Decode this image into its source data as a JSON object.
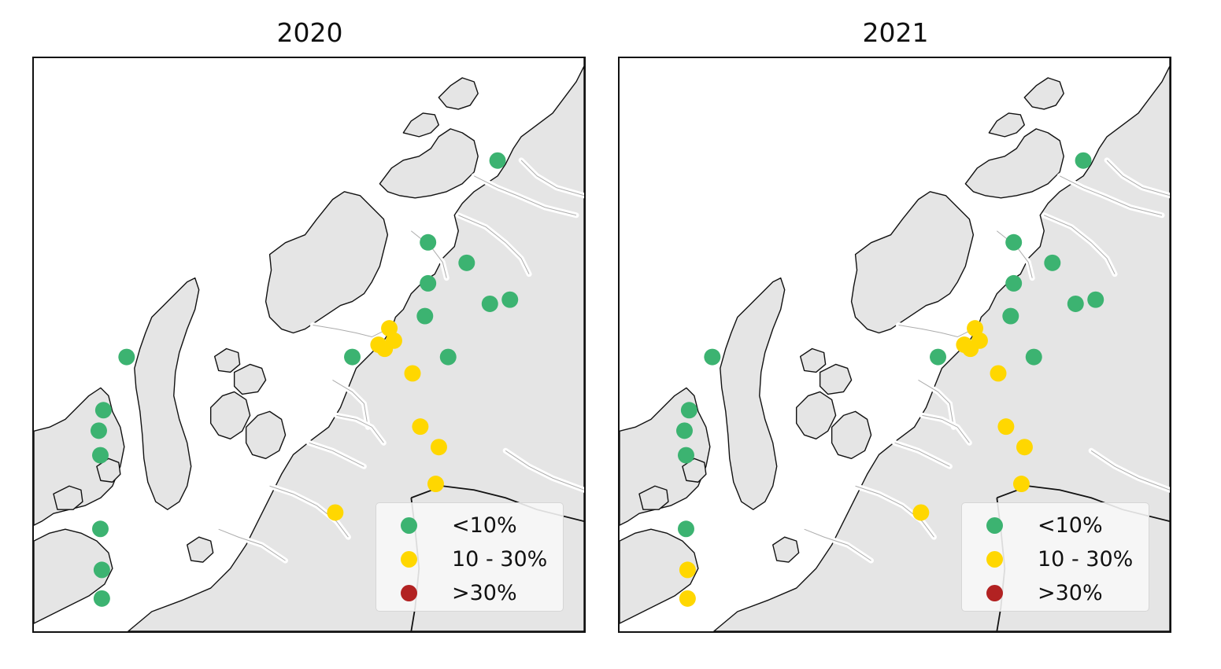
{
  "colors": {
    "low": "#3cb371",
    "medium": "#ffd700",
    "high": "#b22222",
    "land": "#e5e5e5",
    "water": "#ffffff",
    "coast": "#111111"
  },
  "legend": {
    "items": [
      {
        "label": "<10%",
        "category": "low"
      },
      {
        "label": "10 - 30%",
        "category": "medium"
      },
      {
        "label": ">30%",
        "category": "high"
      }
    ]
  },
  "panels": [
    {
      "title": "2020",
      "sites": [
        {
          "lon": 18.0,
          "lat": 70.15,
          "category": "low"
        },
        {
          "lon": 17.55,
          "lat": 69.95,
          "category": "low"
        },
        {
          "lon": 17.8,
          "lat": 69.9,
          "category": "low"
        },
        {
          "lon": 17.55,
          "lat": 69.85,
          "category": "low"
        },
        {
          "lon": 17.95,
          "lat": 69.8,
          "category": "low"
        },
        {
          "lon": 18.08,
          "lat": 69.81,
          "category": "low"
        },
        {
          "lon": 17.53,
          "lat": 69.77,
          "category": "low"
        },
        {
          "lon": 17.06,
          "lat": 69.67,
          "category": "low"
        },
        {
          "lon": 17.68,
          "lat": 69.67,
          "category": "low"
        },
        {
          "lon": 15.6,
          "lat": 69.67,
          "category": "low"
        },
        {
          "lon": 15.45,
          "lat": 69.54,
          "category": "low"
        },
        {
          "lon": 15.42,
          "lat": 69.49,
          "category": "low"
        },
        {
          "lon": 15.43,
          "lat": 69.43,
          "category": "low"
        },
        {
          "lon": 15.43,
          "lat": 69.25,
          "category": "low"
        },
        {
          "lon": 15.44,
          "lat": 69.15,
          "category": "low"
        },
        {
          "lon": 15.44,
          "lat": 69.08,
          "category": "low"
        },
        {
          "lon": 17.3,
          "lat": 69.74,
          "category": "medium"
        },
        {
          "lon": 17.33,
          "lat": 69.71,
          "category": "medium"
        },
        {
          "lon": 17.23,
          "lat": 69.7,
          "category": "medium"
        },
        {
          "lon": 17.27,
          "lat": 69.69,
          "category": "medium"
        },
        {
          "lon": 17.45,
          "lat": 69.63,
          "category": "medium"
        },
        {
          "lon": 17.5,
          "lat": 69.5,
          "category": "medium"
        },
        {
          "lon": 17.62,
          "lat": 69.45,
          "category": "medium"
        },
        {
          "lon": 17.6,
          "lat": 69.36,
          "category": "medium"
        },
        {
          "lon": 16.95,
          "lat": 69.29,
          "category": "medium"
        }
      ]
    },
    {
      "title": "2021",
      "sites": [
        {
          "lon": 18.0,
          "lat": 70.15,
          "category": "low"
        },
        {
          "lon": 17.55,
          "lat": 69.95,
          "category": "low"
        },
        {
          "lon": 17.8,
          "lat": 69.9,
          "category": "low"
        },
        {
          "lon": 17.55,
          "lat": 69.85,
          "category": "low"
        },
        {
          "lon": 17.95,
          "lat": 69.8,
          "category": "low"
        },
        {
          "lon": 18.08,
          "lat": 69.81,
          "category": "low"
        },
        {
          "lon": 17.53,
          "lat": 69.77,
          "category": "low"
        },
        {
          "lon": 17.06,
          "lat": 69.67,
          "category": "low"
        },
        {
          "lon": 17.68,
          "lat": 69.67,
          "category": "low"
        },
        {
          "lon": 15.6,
          "lat": 69.67,
          "category": "low"
        },
        {
          "lon": 15.45,
          "lat": 69.54,
          "category": "low"
        },
        {
          "lon": 15.42,
          "lat": 69.49,
          "category": "low"
        },
        {
          "lon": 15.43,
          "lat": 69.43,
          "category": "low"
        },
        {
          "lon": 15.43,
          "lat": 69.25,
          "category": "low"
        },
        {
          "lon": 15.44,
          "lat": 69.15,
          "category": "medium"
        },
        {
          "lon": 15.44,
          "lat": 69.08,
          "category": "medium"
        },
        {
          "lon": 17.3,
          "lat": 69.74,
          "category": "medium"
        },
        {
          "lon": 17.33,
          "lat": 69.71,
          "category": "medium"
        },
        {
          "lon": 17.23,
          "lat": 69.7,
          "category": "medium"
        },
        {
          "lon": 17.27,
          "lat": 69.69,
          "category": "medium"
        },
        {
          "lon": 17.45,
          "lat": 69.63,
          "category": "medium"
        },
        {
          "lon": 17.5,
          "lat": 69.5,
          "category": "medium"
        },
        {
          "lon": 17.62,
          "lat": 69.45,
          "category": "medium"
        },
        {
          "lon": 17.6,
          "lat": 69.36,
          "category": "medium"
        },
        {
          "lon": 16.95,
          "lat": 69.29,
          "category": "medium"
        }
      ]
    }
  ]
}
